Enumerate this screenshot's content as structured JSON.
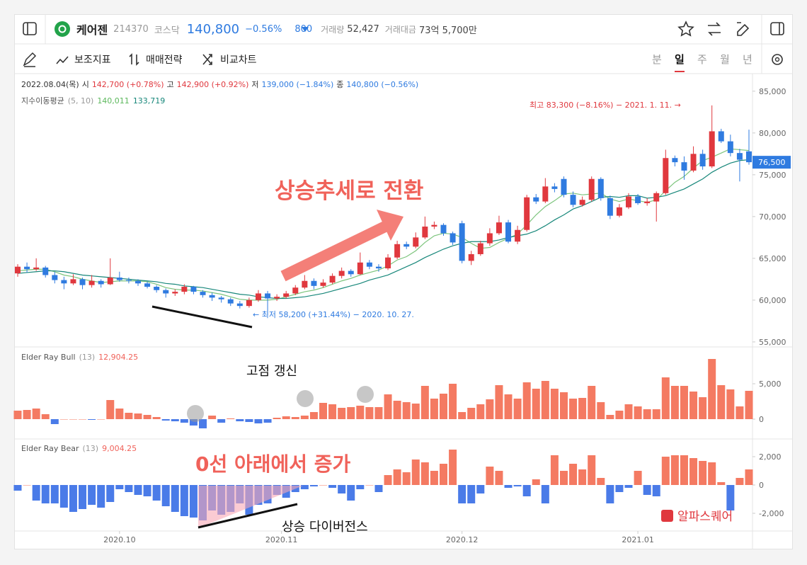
{
  "header": {
    "name": "케어젠",
    "code": "214370",
    "market": "코스닥",
    "price": "140,800",
    "change_pct": "−0.56%",
    "change": "800",
    "volume_label": "거래량",
    "volume": "52,427",
    "amount_label": "거래대금",
    "amount": "73억 5,700만"
  },
  "toolbar": {
    "items": [
      "보조지표",
      "매매전략",
      "비교차트"
    ],
    "periods": [
      "분",
      "일",
      "주",
      "월",
      "년"
    ],
    "active_period": 1
  },
  "annotations": {
    "headline": "상승추세로 전환",
    "high_note": "최고 83,300 (−8.16%) − 2021. 1. 11. →",
    "low_note": "← 최저 58,200 (+31.44%) − 2020. 10. 27.",
    "bull_note": "고점 갱신",
    "bear_note": "0선 아래에서 증가",
    "divergence": "상승 다이버전스",
    "watermark": "알파스퀘어"
  },
  "chart_data": [
    {
      "type": "candlestick",
      "info": [
        {
          "text": "2022.08.04(목)",
          "color": "#333"
        },
        {
          "text": "시",
          "color": "#333"
        },
        {
          "text": "142,700 (+0.78%)",
          "color": "#e0383e"
        },
        {
          "text": "고",
          "color": "#333"
        },
        {
          "text": "142,900 (+0.92%)",
          "color": "#e0383e"
        },
        {
          "text": "저",
          "color": "#333"
        },
        {
          "text": "139,000 (−1.84%)",
          "color": "#2f7be0"
        },
        {
          "text": "종",
          "color": "#333"
        },
        {
          "text": "140,800 (−0.56%)",
          "color": "#2f7be0"
        }
      ],
      "ma_legend": [
        {
          "text": "지수이동평균",
          "color": "#555"
        },
        {
          "text": "(5, 10)",
          "color": "#999"
        },
        {
          "text": "140,011",
          "color": "#5cb85c"
        },
        {
          "text": "133,719",
          "color": "#17877a"
        }
      ],
      "up_color": "#e0383e",
      "down_color": "#2f7be0",
      "candles": [
        [
          63200,
          64300,
          62800,
          64000
        ],
        [
          64000,
          64500,
          63300,
          63700
        ],
        [
          63700,
          65000,
          63500,
          63900
        ],
        [
          63900,
          64100,
          62700,
          63000
        ],
        [
          63000,
          63400,
          62000,
          62400
        ],
        [
          62400,
          62800,
          61300,
          62000
        ],
        [
          62000,
          63100,
          61800,
          62500
        ],
        [
          62500,
          62700,
          61300,
          61800
        ],
        [
          61800,
          63000,
          61500,
          62300
        ],
        [
          62300,
          62500,
          61500,
          61900
        ],
        [
          61900,
          65000,
          61800,
          62700
        ],
        [
          62700,
          63400,
          62200,
          62400
        ],
        [
          62400,
          62700,
          62000,
          62300
        ],
        [
          62300,
          62500,
          61700,
          62000
        ],
        [
          62000,
          62200,
          61400,
          61600
        ],
        [
          61600,
          61800,
          60900,
          61200
        ],
        [
          61200,
          61400,
          60300,
          60800
        ],
        [
          60800,
          61300,
          60500,
          61000
        ],
        [
          61000,
          61900,
          60700,
          61600
        ],
        [
          61600,
          61700,
          60700,
          61000
        ],
        [
          61000,
          61200,
          60300,
          60600
        ],
        [
          60600,
          60900,
          59900,
          60300
        ],
        [
          60300,
          60500,
          59700,
          60100
        ],
        [
          60100,
          60300,
          59300,
          59600
        ],
        [
          59600,
          59900,
          59000,
          59300
        ],
        [
          59300,
          60300,
          59100,
          60000
        ],
        [
          60000,
          61200,
          59800,
          60800
        ],
        [
          60800,
          61100,
          58200,
          60200
        ],
        [
          60200,
          60700,
          59900,
          60400
        ],
        [
          60400,
          61100,
          60200,
          60800
        ],
        [
          60800,
          61800,
          60600,
          61500
        ],
        [
          61500,
          63000,
          61300,
          62300
        ],
        [
          62300,
          62600,
          61300,
          61700
        ],
        [
          61700,
          62500,
          61500,
          62100
        ],
        [
          62100,
          63200,
          61900,
          62900
        ],
        [
          62900,
          63900,
          62600,
          63500
        ],
        [
          63500,
          63700,
          62800,
          63100
        ],
        [
          63100,
          65700,
          63000,
          64500
        ],
        [
          64500,
          64800,
          63700,
          64000
        ],
        [
          64000,
          64300,
          63400,
          63800
        ],
        [
          63800,
          65500,
          63600,
          65100
        ],
        [
          65100,
          67100,
          64900,
          66700
        ],
        [
          66700,
          67000,
          66100,
          66400
        ],
        [
          66400,
          68100,
          66200,
          67500
        ],
        [
          67500,
          70000,
          67300,
          68800
        ],
        [
          68800,
          69400,
          68500,
          69000
        ],
        [
          69000,
          69200,
          67700,
          68000
        ],
        [
          68000,
          68200,
          66600,
          66900
        ],
        [
          69200,
          69500,
          64400,
          64700
        ],
        [
          64700,
          65900,
          64200,
          65500
        ],
        [
          65500,
          67100,
          65300,
          66800
        ],
        [
          66800,
          68600,
          66500,
          68000
        ],
        [
          68000,
          70100,
          67800,
          69300
        ],
        [
          69300,
          69600,
          66800,
          67000
        ],
        [
          67000,
          68900,
          66700,
          68400
        ],
        [
          68400,
          72600,
          68200,
          72300
        ],
        [
          72300,
          72700,
          71500,
          71800
        ],
        [
          71800,
          74600,
          71600,
          73600
        ],
        [
          73600,
          74000,
          72900,
          73300
        ],
        [
          74500,
          74800,
          72300,
          72600
        ],
        [
          72600,
          73000,
          71100,
          71400
        ],
        [
          71400,
          72400,
          71200,
          72000
        ],
        [
          72000,
          74800,
          71800,
          74500
        ],
        [
          74500,
          74700,
          71900,
          72200
        ],
        [
          72200,
          72500,
          69700,
          70100
        ],
        [
          70100,
          71500,
          69900,
          71100
        ],
        [
          71100,
          72800,
          70900,
          72400
        ],
        [
          72400,
          72700,
          71400,
          71600
        ],
        [
          71600,
          72200,
          71300,
          71800
        ],
        [
          71800,
          73000,
          69400,
          72800
        ],
        [
          72800,
          78000,
          72600,
          77000
        ],
        [
          77000,
          77300,
          76000,
          76500
        ],
        [
          76500,
          77200,
          74400,
          75500
        ],
        [
          75500,
          78400,
          75300,
          77500
        ],
        [
          77500,
          78000,
          75600,
          76000
        ],
        [
          76000,
          83300,
          75800,
          80200
        ],
        [
          80200,
          80500,
          78800,
          79000
        ],
        [
          79000,
          79800,
          77200,
          77600
        ],
        [
          77600,
          78100,
          74200,
          76800
        ],
        [
          77800,
          80400,
          76200,
          76500
        ]
      ],
      "last_label": "76,500",
      "series": [
        {
          "color": "#7cc47c",
          "values": [
            63500,
            63600,
            63700,
            63700,
            63400,
            63000,
            62800,
            62500,
            62300,
            62100,
            62200,
            62300,
            62300,
            62300,
            62200,
            61900,
            61500,
            61300,
            61200,
            61200,
            61100,
            60900,
            60700,
            60400,
            60100,
            60000,
            60000,
            60000,
            60100,
            60400,
            60700,
            61000,
            61200,
            61500,
            61900,
            62300,
            62600,
            63000,
            63300,
            63600,
            64100,
            64800,
            65200,
            65900,
            66900,
            67700,
            68000,
            67900,
            67500,
            66800,
            66200,
            66300,
            66900,
            67400,
            67900,
            69000,
            70200,
            71200,
            71900,
            72700,
            72800,
            72600,
            72700,
            72800,
            72100,
            71800,
            72100,
            71900,
            71700,
            72000,
            73100,
            74100,
            74800,
            75800,
            76700,
            77100,
            77600,
            78100,
            78000,
            77900
          ]
        },
        {
          "color": "#17877a",
          "values": [
            63200,
            63300,
            63400,
            63500,
            63500,
            63400,
            63200,
            63000,
            62900,
            62800,
            62700,
            62600,
            62500,
            62400,
            62300,
            62200,
            62000,
            61900,
            61700,
            61600,
            61500,
            61300,
            61100,
            60900,
            60700,
            60600,
            60400,
            60300,
            60200,
            60200,
            60300,
            60400,
            60600,
            60800,
            61100,
            61400,
            61700,
            62000,
            62400,
            62700,
            63000,
            63500,
            64000,
            64500,
            65100,
            65600,
            66100,
            66500,
            66800,
            67000,
            67000,
            67000,
            67200,
            67500,
            67700,
            67900,
            68300,
            68900,
            69600,
            70200,
            70900,
            71300,
            71800,
            72300,
            72400,
            72300,
            72500,
            72500,
            72200,
            72300,
            72500,
            72900,
            73300,
            73900,
            74500,
            75300,
            75900,
            76400,
            76700,
            76800
          ]
        }
      ],
      "ylim": [
        54400,
        87100
      ],
      "yticks": [
        {
          "value": 55000,
          "label": "55,000"
        },
        {
          "value": 60000,
          "label": "60,000"
        },
        {
          "value": 65000,
          "label": "65,000"
        },
        {
          "value": 70000,
          "label": "70,000"
        },
        {
          "value": 75000,
          "label": "75,000"
        },
        {
          "value": 80000,
          "label": "80,000"
        },
        {
          "value": 85000,
          "label": "85,000"
        }
      ],
      "xticks": [
        {
          "value": 11,
          "label": "2020.10"
        },
        {
          "value": 28.5,
          "label": "2020.11"
        },
        {
          "value": 48,
          "label": "2020.12"
        },
        {
          "value": 67,
          "label": "2021.01"
        }
      ]
    },
    {
      "type": "bar",
      "title": "Elder Ray Bull",
      "params": "(13)",
      "last": "12,904.25",
      "pos_color": "#f47a62",
      "neg_color": "#4a7be8",
      "values": [
        1200,
        1300,
        1500,
        700,
        -700,
        0,
        0,
        0,
        -100,
        0,
        2700,
        1500,
        900,
        800,
        600,
        300,
        -200,
        -300,
        -500,
        -900,
        -1300,
        500,
        -500,
        100,
        -300,
        -400,
        -600,
        -500,
        200,
        400,
        300,
        500,
        1000,
        2300,
        2100,
        1600,
        1700,
        1900,
        1700,
        1700,
        3500,
        2600,
        2400,
        2200,
        4700,
        2900,
        3600,
        5000,
        1000,
        1600,
        2100,
        2800,
        4800,
        3500,
        2900,
        5200,
        4300,
        5400,
        4300,
        3800,
        2900,
        3000,
        4700,
        2400,
        600,
        1200,
        2100,
        1800,
        1400,
        1400,
        5900,
        4700,
        4700,
        3900,
        3100,
        8500,
        4800,
        4200,
        1800,
        4000
      ],
      "ylim": [
        -2800,
        10200
      ],
      "yticks": [
        0,
        {
          "value": 5000,
          "label": "5,000"
        }
      ]
    },
    {
      "type": "bar",
      "title": "Elder Ray Bear",
      "params": "(13)",
      "last": "9,004.25",
      "pos_color": "#f47a62",
      "neg_color": "#4a7be8",
      "values": [
        -400,
        0,
        -1100,
        -1300,
        -1300,
        -1600,
        -1900,
        -1700,
        -1400,
        -1600,
        -1200,
        -300,
        -500,
        -700,
        -800,
        -1100,
        -1500,
        -1900,
        -2200,
        -2300,
        -2500,
        -1800,
        -2100,
        -1900,
        -1300,
        -2100,
        -1400,
        -1300,
        -700,
        -900,
        -500,
        -300,
        -100,
        0,
        -200,
        -600,
        -1100,
        -300,
        0,
        -500,
        700,
        1100,
        900,
        1800,
        1600,
        1000,
        1500,
        2500,
        -1300,
        -1300,
        -600,
        1300,
        1000,
        -200,
        -100,
        -800,
        400,
        -1300,
        2100,
        1000,
        1500,
        1100,
        2100,
        500,
        -1300,
        -500,
        -200,
        1000,
        -700,
        -800,
        2000,
        2100,
        2100,
        1900,
        1700,
        1600,
        200,
        -1800,
        500,
        1100
      ],
      "ylim": [
        -3250,
        3250
      ],
      "yticks": [
        {
          "value": -2000,
          "label": "-2,000"
        },
        0,
        {
          "value": 2000,
          "label": "2,000"
        }
      ]
    }
  ]
}
